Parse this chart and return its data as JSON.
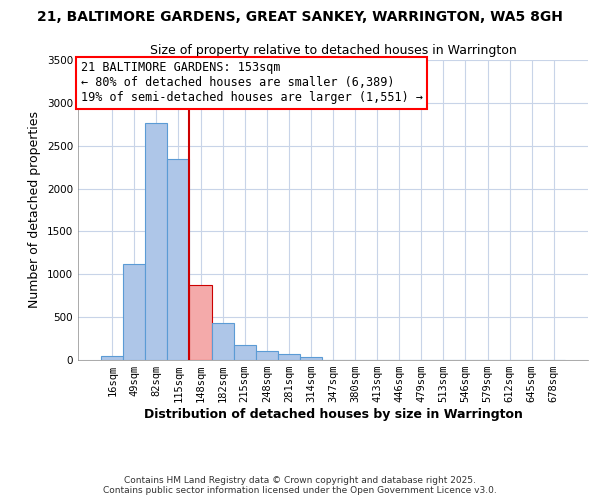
{
  "title": "21, BALTIMORE GARDENS, GREAT SANKEY, WARRINGTON, WA5 8GH",
  "subtitle": "Size of property relative to detached houses in Warrington",
  "xlabel": "Distribution of detached houses by size in Warrington",
  "ylabel": "Number of detached properties",
  "categories": [
    "16sqm",
    "49sqm",
    "82sqm",
    "115sqm",
    "148sqm",
    "182sqm",
    "215sqm",
    "248sqm",
    "281sqm",
    "314sqm",
    "347sqm",
    "380sqm",
    "413sqm",
    "446sqm",
    "479sqm",
    "513sqm",
    "546sqm",
    "579sqm",
    "612sqm",
    "645sqm",
    "678sqm"
  ],
  "values": [
    50,
    1120,
    2760,
    2340,
    880,
    435,
    175,
    100,
    65,
    30,
    5,
    2,
    1,
    0,
    0,
    0,
    0,
    0,
    0,
    0,
    0
  ],
  "bar_color": "#aec6e8",
  "bar_edge_color": "#5b9bd5",
  "highlight_bar_index": 4,
  "highlight_bar_color": "#f4aaaa",
  "highlight_bar_edge_color": "#cc0000",
  "vline_color": "#cc0000",
  "ylim": [
    0,
    3500
  ],
  "yticks": [
    0,
    500,
    1000,
    1500,
    2000,
    2500,
    3000,
    3500
  ],
  "annotation_box_text": "21 BALTIMORE GARDENS: 153sqm\n← 80% of detached houses are smaller (6,389)\n19% of semi-detached houses are larger (1,551) →",
  "footer_line1": "Contains HM Land Registry data © Crown copyright and database right 2025.",
  "footer_line2": "Contains public sector information licensed under the Open Government Licence v3.0.",
  "background_color": "#ffffff",
  "grid_color": "#c8d4e8",
  "title_fontsize": 10,
  "subtitle_fontsize": 9,
  "axis_label_fontsize": 9,
  "tick_fontsize": 7.5,
  "annotation_fontsize": 8.5,
  "footer_fontsize": 6.5
}
